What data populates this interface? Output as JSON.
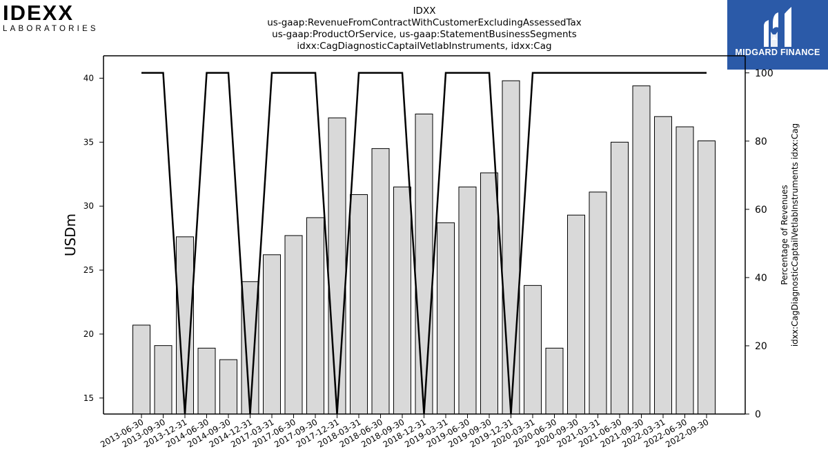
{
  "logo": {
    "wordmark": "IDEXX",
    "tagline": "LABORATORIES"
  },
  "brand": {
    "name": "MIDGARD FINANCE",
    "color": "#2b5aa8"
  },
  "title_lines": [
    "IDXX",
    "us-gaap:RevenueFromContractWithCustomerExcludingAssessedTax",
    "us-gaap:ProductOrService, us-gaap:StatementBusinessSegments",
    "idxx:CagDiagnosticCaptailVetlabInstruments, idxx:Cag"
  ],
  "chart_data": {
    "type": "bar",
    "categories": [
      "2013-06-30",
      "2013-09-30",
      "2013-12-31",
      "2014-06-30",
      "2014-09-30",
      "2014-12-31",
      "2017-03-31",
      "2017-06-30",
      "2017-09-30",
      "2017-12-31",
      "2018-03-31",
      "2018-06-30",
      "2018-09-30",
      "2018-12-31",
      "2019-03-31",
      "2019-06-30",
      "2019-09-30",
      "2019-12-31",
      "2020-03-31",
      "2020-06-30",
      "2020-09-30",
      "2021-03-31",
      "2021-06-30",
      "2021-09-30",
      "2022-03-31",
      "2022-06-30",
      "2022-09-30"
    ],
    "series": [
      {
        "axis": "left",
        "type": "bar",
        "values": [
          20.7,
          19.1,
          27.6,
          18.9,
          18.0,
          24.1,
          26.2,
          27.7,
          29.1,
          36.9,
          30.9,
          34.5,
          31.5,
          37.2,
          28.7,
          31.5,
          32.6,
          39.8,
          23.8,
          18.9,
          29.3,
          31.1,
          35.0,
          39.4,
          37.0,
          36.2,
          35.1
        ]
      },
      {
        "axis": "right",
        "type": "line",
        "values": [
          100,
          100,
          0,
          100,
          100,
          0,
          100,
          100,
          100,
          0,
          100,
          100,
          100,
          0,
          100,
          100,
          100,
          0,
          100,
          100,
          100,
          100,
          100,
          100,
          100,
          100,
          100
        ]
      }
    ],
    "ylabel": "USDm",
    "y2label": [
      "Percentage of Revenues",
      "idxx:CagDiagnosticCaptailVetlabInstruments idxx:Cag"
    ],
    "ylim": [
      13.75,
      41.75
    ],
    "y2lim": [
      0,
      105
    ],
    "yticks": [
      15,
      20,
      25,
      30,
      35,
      40
    ],
    "y2ticks": [
      0,
      20,
      40,
      60,
      80,
      100
    ],
    "bar_color": "#d9d9d9",
    "line_color": "#000000"
  }
}
